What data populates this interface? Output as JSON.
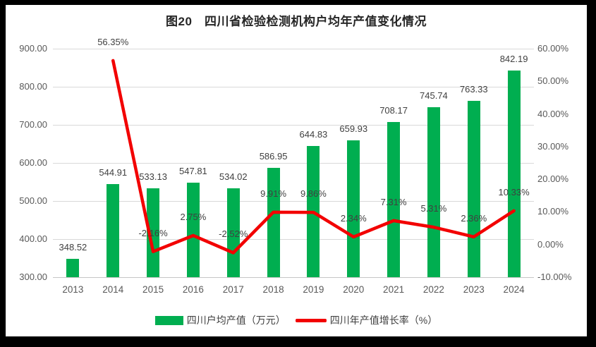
{
  "frame": {
    "background": "#000000",
    "panel_background": "#ffffff"
  },
  "chart": {
    "legend": [
      {
        "label": "四川户均产值（万元）",
        "swatch": "bar"
      },
      {
        "label": "四川年产值增长率（%）",
        "swatch": "line"
      }
    ]
  },
  "chart_data": {
    "type": "bar+line",
    "title": "图20　四川省检验检测机构户均年产值变化情况",
    "categories": [
      "2013",
      "2014",
      "2015",
      "2016",
      "2017",
      "2018",
      "2019",
      "2020",
      "2021",
      "2022",
      "2023",
      "2024"
    ],
    "series": [
      {
        "name": "四川户均产值（万元）",
        "type": "bar",
        "axis": "left",
        "color": "#00ae50",
        "values": [
          348.52,
          544.91,
          533.13,
          547.81,
          534.02,
          586.95,
          644.83,
          659.93,
          708.17,
          745.74,
          763.33,
          842.19
        ],
        "data_labels": [
          "348.52",
          "544.91",
          "533.13",
          "547.81",
          "534.02",
          "586.95",
          "644.83",
          "659.93",
          "708.17",
          "745.74",
          "763.33",
          "842.19"
        ]
      },
      {
        "name": "四川年产值增长率（%）",
        "type": "line",
        "axis": "right",
        "color": "#f20000",
        "values": [
          null,
          56.35,
          -2.16,
          2.75,
          -2.52,
          9.91,
          9.86,
          2.34,
          7.31,
          5.31,
          2.36,
          10.33
        ],
        "data_labels": [
          null,
          "56.35%",
          "-2.16%",
          "2.75%",
          "-2.52%",
          "9.91%",
          "9.86%",
          "2.34%",
          "7.31%",
          "5.31%",
          "2.36%",
          "10.33%"
        ]
      }
    ],
    "left_axis": {
      "min": 300,
      "max": 900,
      "step": 100,
      "ticks": [
        "900.00",
        "800.00",
        "700.00",
        "600.00",
        "500.00",
        "400.00",
        "300.00"
      ]
    },
    "right_axis": {
      "min": -10,
      "max": 60,
      "step": 10,
      "ticks": [
        "60.00%",
        "50.00%",
        "40.00%",
        "30.00%",
        "20.00%",
        "10.00%",
        "0.00%",
        "-10.00%"
      ]
    },
    "grid": "horizontal-left-axis",
    "legend_position": "bottom-center",
    "gridline_color": "#d9d9d9"
  }
}
